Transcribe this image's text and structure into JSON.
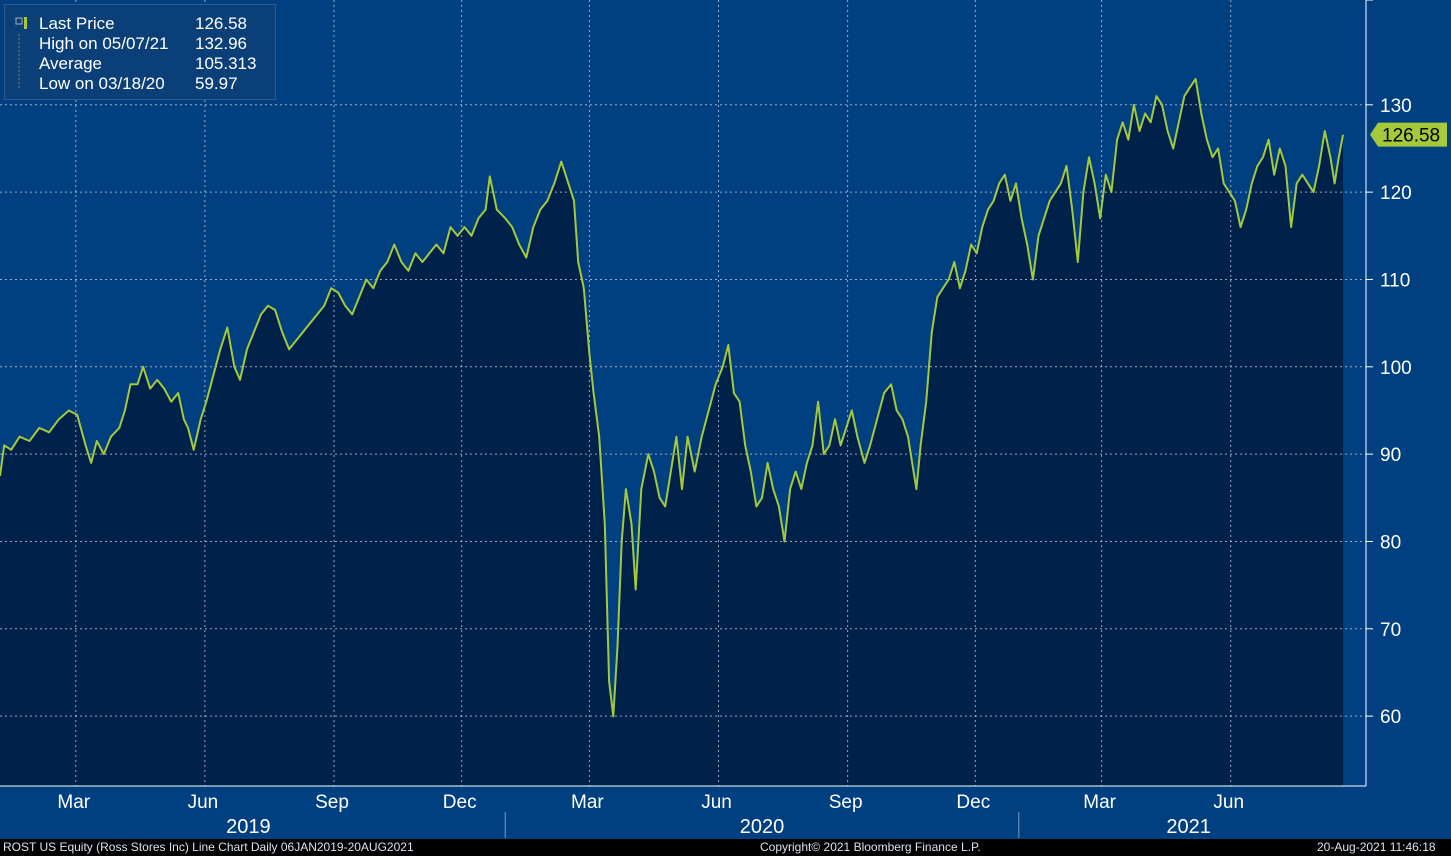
{
  "legend": {
    "last": {
      "label": "Last Price",
      "value": "126.58"
    },
    "high": {
      "label": "High on 05/07/21",
      "value": "132.96"
    },
    "average": {
      "label": "Average",
      "value": "105.313"
    },
    "low": {
      "label": "Low on 03/18/20",
      "value": "59.97"
    }
  },
  "footer": {
    "left": "ROST US Equity (Ross Stores Inc) Line Chart  Daily 06JAN2019-20AUG2021",
    "center": "Copyright© 2021 Bloomberg Finance L.P.",
    "right": "20-Aug-2021 11:46:18"
  },
  "colors": {
    "background": "#003f80",
    "area": "#00224a",
    "line": "#a4c93a",
    "grid": "#c8d4e3",
    "axis_text": "#ffffff"
  },
  "chart_data": {
    "type": "area",
    "x_start": "2019-01-06",
    "x_end": "2021-08-20",
    "ylim": [
      52,
      142
    ],
    "y_ticks": [
      60,
      70,
      80,
      90,
      100,
      110,
      120,
      130
    ],
    "month_ticks": [
      {
        "label": "Mar",
        "date": "2019-03-01"
      },
      {
        "label": "Jun",
        "date": "2019-06-01"
      },
      {
        "label": "Sep",
        "date": "2019-09-01"
      },
      {
        "label": "Dec",
        "date": "2019-12-01"
      },
      {
        "label": "Mar",
        "date": "2020-03-01"
      },
      {
        "label": "Jun",
        "date": "2020-06-01"
      },
      {
        "label": "Sep",
        "date": "2020-09-01"
      },
      {
        "label": "Dec",
        "date": "2020-12-01"
      },
      {
        "label": "Mar",
        "date": "2021-03-01"
      },
      {
        "label": "Jun",
        "date": "2021-06-01"
      }
    ],
    "year_labels": [
      {
        "label": "2019",
        "date": "2019-07-02"
      },
      {
        "label": "2020",
        "date": "2020-07-02"
      },
      {
        "label": "2021",
        "date": "2021-05-02"
      }
    ],
    "year_separators": [
      "2020-01-01",
      "2021-01-01"
    ],
    "last_price": 126.58,
    "series": [
      {
        "values": [
          [
            "2019-01-06",
            87.5
          ],
          [
            "2019-01-09",
            91
          ],
          [
            "2019-01-14",
            90.5
          ],
          [
            "2019-01-20",
            92
          ],
          [
            "2019-01-27",
            91.5
          ],
          [
            "2019-02-03",
            93
          ],
          [
            "2019-02-10",
            92.5
          ],
          [
            "2019-02-17",
            94
          ],
          [
            "2019-02-24",
            95
          ],
          [
            "2019-03-02",
            94.5
          ],
          [
            "2019-03-08",
            91
          ],
          [
            "2019-03-12",
            89
          ],
          [
            "2019-03-16",
            91.5
          ],
          [
            "2019-03-21",
            90
          ],
          [
            "2019-03-26",
            92
          ],
          [
            "2019-04-01",
            93
          ],
          [
            "2019-04-05",
            95
          ],
          [
            "2019-04-09",
            98
          ],
          [
            "2019-04-14",
            98
          ],
          [
            "2019-04-18",
            100
          ],
          [
            "2019-04-23",
            97.5
          ],
          [
            "2019-04-28",
            98.5
          ],
          [
            "2019-05-03",
            97.5
          ],
          [
            "2019-05-08",
            96
          ],
          [
            "2019-05-13",
            97
          ],
          [
            "2019-05-17",
            94
          ],
          [
            "2019-05-20",
            93
          ],
          [
            "2019-05-24",
            90.5
          ],
          [
            "2019-05-29",
            94
          ],
          [
            "2019-06-02",
            96
          ],
          [
            "2019-06-07",
            99
          ],
          [
            "2019-06-12",
            102
          ],
          [
            "2019-06-17",
            104.5
          ],
          [
            "2019-06-22",
            100
          ],
          [
            "2019-06-26",
            98.5
          ],
          [
            "2019-07-01",
            102
          ],
          [
            "2019-07-06",
            104
          ],
          [
            "2019-07-11",
            106
          ],
          [
            "2019-07-16",
            107
          ],
          [
            "2019-07-21",
            106.5
          ],
          [
            "2019-07-26",
            104
          ],
          [
            "2019-07-31",
            102
          ],
          [
            "2019-08-05",
            103
          ],
          [
            "2019-08-10",
            104
          ],
          [
            "2019-08-15",
            105
          ],
          [
            "2019-08-20",
            106
          ],
          [
            "2019-08-25",
            107
          ],
          [
            "2019-08-30",
            109
          ],
          [
            "2019-09-04",
            108.5
          ],
          [
            "2019-09-09",
            107
          ],
          [
            "2019-09-14",
            106
          ],
          [
            "2019-09-19",
            108
          ],
          [
            "2019-09-24",
            110
          ],
          [
            "2019-09-29",
            109
          ],
          [
            "2019-10-04",
            111
          ],
          [
            "2019-10-09",
            112
          ],
          [
            "2019-10-14",
            114
          ],
          [
            "2019-10-19",
            112
          ],
          [
            "2019-10-24",
            111
          ],
          [
            "2019-10-29",
            113
          ],
          [
            "2019-11-03",
            112
          ],
          [
            "2019-11-08",
            113
          ],
          [
            "2019-11-13",
            114
          ],
          [
            "2019-11-18",
            113
          ],
          [
            "2019-11-23",
            116
          ],
          [
            "2019-11-28",
            115
          ],
          [
            "2019-12-03",
            116
          ],
          [
            "2019-12-08",
            115
          ],
          [
            "2019-12-13",
            117
          ],
          [
            "2019-12-18",
            118
          ],
          [
            "2019-12-21",
            121.8
          ],
          [
            "2019-12-26",
            118
          ],
          [
            "2020-01-01",
            117
          ],
          [
            "2020-01-06",
            116
          ],
          [
            "2020-01-11",
            114
          ],
          [
            "2020-01-16",
            112.5
          ],
          [
            "2020-01-21",
            116
          ],
          [
            "2020-01-26",
            118
          ],
          [
            "2020-01-31",
            119
          ],
          [
            "2020-02-05",
            121
          ],
          [
            "2020-02-10",
            123.5
          ],
          [
            "2020-02-15",
            121
          ],
          [
            "2020-02-19",
            119
          ],
          [
            "2020-02-22",
            112
          ],
          [
            "2020-02-26",
            109
          ],
          [
            "2020-03-01",
            101.5
          ],
          [
            "2020-03-04",
            97
          ],
          [
            "2020-03-08",
            92
          ],
          [
            "2020-03-12",
            82
          ],
          [
            "2020-03-15",
            64
          ],
          [
            "2020-03-18",
            59.97
          ],
          [
            "2020-03-21",
            68
          ],
          [
            "2020-03-24",
            80
          ],
          [
            "2020-03-27",
            86
          ],
          [
            "2020-03-31",
            82
          ],
          [
            "2020-04-03",
            74.5
          ],
          [
            "2020-04-07",
            86
          ],
          [
            "2020-04-12",
            90
          ],
          [
            "2020-04-16",
            88
          ],
          [
            "2020-04-20",
            85
          ],
          [
            "2020-04-24",
            84
          ],
          [
            "2020-04-28",
            88
          ],
          [
            "2020-05-02",
            92
          ],
          [
            "2020-05-06",
            86
          ],
          [
            "2020-05-10",
            92
          ],
          [
            "2020-05-15",
            88
          ],
          [
            "2020-05-20",
            92
          ],
          [
            "2020-05-25",
            95
          ],
          [
            "2020-05-30",
            98
          ],
          [
            "2020-06-04",
            100
          ],
          [
            "2020-06-08",
            102.5
          ],
          [
            "2020-06-12",
            97
          ],
          [
            "2020-06-16",
            96
          ],
          [
            "2020-06-20",
            91
          ],
          [
            "2020-06-24",
            88
          ],
          [
            "2020-06-28",
            84
          ],
          [
            "2020-07-02",
            85
          ],
          [
            "2020-07-06",
            89
          ],
          [
            "2020-07-10",
            86
          ],
          [
            "2020-07-14",
            84
          ],
          [
            "2020-07-18",
            80
          ],
          [
            "2020-07-22",
            86
          ],
          [
            "2020-07-26",
            88
          ],
          [
            "2020-07-30",
            86
          ],
          [
            "2020-08-03",
            89
          ],
          [
            "2020-08-07",
            91
          ],
          [
            "2020-08-11",
            96
          ],
          [
            "2020-08-15",
            90
          ],
          [
            "2020-08-19",
            91
          ],
          [
            "2020-08-23",
            94
          ],
          [
            "2020-08-27",
            91
          ],
          [
            "2020-08-31",
            93
          ],
          [
            "2020-09-04",
            95
          ],
          [
            "2020-09-08",
            92
          ],
          [
            "2020-09-13",
            89
          ],
          [
            "2020-09-17",
            91
          ],
          [
            "2020-09-22",
            94
          ],
          [
            "2020-09-27",
            97
          ],
          [
            "2020-10-02",
            98
          ],
          [
            "2020-10-06",
            95
          ],
          [
            "2020-10-10",
            94
          ],
          [
            "2020-10-14",
            92
          ],
          [
            "2020-10-18",
            88
          ],
          [
            "2020-10-20",
            86
          ],
          [
            "2020-10-23",
            91
          ],
          [
            "2020-10-27",
            96
          ],
          [
            "2020-10-31",
            104
          ],
          [
            "2020-11-04",
            108
          ],
          [
            "2020-11-08",
            109
          ],
          [
            "2020-11-12",
            110
          ],
          [
            "2020-11-16",
            112
          ],
          [
            "2020-11-20",
            109
          ],
          [
            "2020-11-24",
            111
          ],
          [
            "2020-11-28",
            114
          ],
          [
            "2020-12-02",
            113
          ],
          [
            "2020-12-06",
            116
          ],
          [
            "2020-12-10",
            118
          ],
          [
            "2020-12-14",
            119
          ],
          [
            "2020-12-18",
            121
          ],
          [
            "2020-12-22",
            122
          ],
          [
            "2020-12-26",
            119
          ],
          [
            "2020-12-30",
            121
          ],
          [
            "2021-01-03",
            117
          ],
          [
            "2021-01-07",
            114
          ],
          [
            "2021-01-11",
            110
          ],
          [
            "2021-01-15",
            115
          ],
          [
            "2021-01-19",
            117
          ],
          [
            "2021-01-23",
            119
          ],
          [
            "2021-01-27",
            120
          ],
          [
            "2021-01-31",
            121
          ],
          [
            "2021-02-04",
            123
          ],
          [
            "2021-02-08",
            118
          ],
          [
            "2021-02-12",
            112
          ],
          [
            "2021-02-16",
            120
          ],
          [
            "2021-02-20",
            124
          ],
          [
            "2021-02-24",
            121
          ],
          [
            "2021-02-28",
            117
          ],
          [
            "2021-03-04",
            122
          ],
          [
            "2021-03-08",
            120
          ],
          [
            "2021-03-12",
            126
          ],
          [
            "2021-03-16",
            128
          ],
          [
            "2021-03-20",
            126
          ],
          [
            "2021-03-24",
            130
          ],
          [
            "2021-03-28",
            127
          ],
          [
            "2021-04-01",
            129
          ],
          [
            "2021-04-05",
            128
          ],
          [
            "2021-04-09",
            131
          ],
          [
            "2021-04-13",
            130
          ],
          [
            "2021-04-17",
            127
          ],
          [
            "2021-04-21",
            125
          ],
          [
            "2021-04-25",
            128
          ],
          [
            "2021-04-29",
            131
          ],
          [
            "2021-05-03",
            132
          ],
          [
            "2021-05-07",
            132.96
          ],
          [
            "2021-05-11",
            129
          ],
          [
            "2021-05-15",
            126
          ],
          [
            "2021-05-19",
            124
          ],
          [
            "2021-05-23",
            125
          ],
          [
            "2021-05-27",
            121
          ],
          [
            "2021-05-31",
            120
          ],
          [
            "2021-06-04",
            119
          ],
          [
            "2021-06-08",
            116
          ],
          [
            "2021-06-12",
            118
          ],
          [
            "2021-06-16",
            121
          ],
          [
            "2021-06-20",
            123
          ],
          [
            "2021-06-24",
            124
          ],
          [
            "2021-06-28",
            126
          ],
          [
            "2021-07-02",
            122
          ],
          [
            "2021-07-06",
            125
          ],
          [
            "2021-07-10",
            123
          ],
          [
            "2021-07-14",
            116
          ],
          [
            "2021-07-18",
            121
          ],
          [
            "2021-07-22",
            122
          ],
          [
            "2021-07-26",
            121
          ],
          [
            "2021-07-30",
            120
          ],
          [
            "2021-08-03",
            123
          ],
          [
            "2021-08-07",
            127
          ],
          [
            "2021-08-11",
            124
          ],
          [
            "2021-08-14",
            121
          ],
          [
            "2021-08-17",
            124
          ],
          [
            "2021-08-20",
            126.58
          ]
        ]
      }
    ]
  }
}
